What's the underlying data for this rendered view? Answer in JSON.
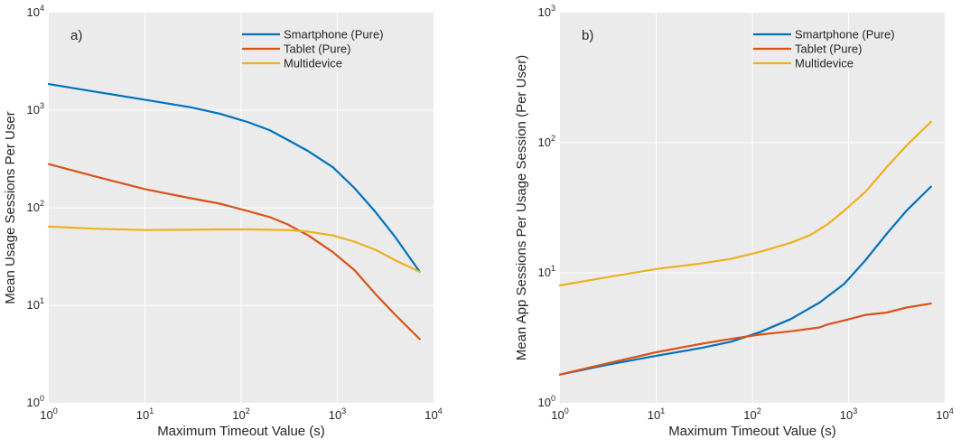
{
  "colors": {
    "smartphone": "#0072BD",
    "tablet": "#D95319",
    "multidevice": "#EDB120",
    "plot_bg": "#EBEBEB",
    "grid": "#FFFFFF"
  },
  "chart_data": [
    {
      "type": "line",
      "panel_label": "a)",
      "xlabel": "Maximum Timeout Value (s)",
      "ylabel": "Mean Usage Sessions Per User",
      "x_scale": "log",
      "y_scale": "log",
      "xlim": [
        1,
        10000
      ],
      "ylim": [
        1,
        10000
      ],
      "x_ticks": [
        {
          "base": "10",
          "exp": "0",
          "v": 1
        },
        {
          "base": "10",
          "exp": "1",
          "v": 10
        },
        {
          "base": "10",
          "exp": "2",
          "v": 100
        },
        {
          "base": "10",
          "exp": "3",
          "v": 1000
        },
        {
          "base": "10",
          "exp": "4",
          "v": 10000
        }
      ],
      "y_ticks": [
        {
          "base": "10",
          "exp": "0",
          "v": 1
        },
        {
          "base": "10",
          "exp": "1",
          "v": 10
        },
        {
          "base": "10",
          "exp": "2",
          "v": 100
        },
        {
          "base": "10",
          "exp": "3",
          "v": 1000
        },
        {
          "base": "10",
          "exp": "4",
          "v": 10000
        }
      ],
      "grid": true,
      "legend_position": "top-right",
      "series": [
        {
          "name": "Smartphone (Pure)",
          "color_key": "smartphone",
          "x": [
            1,
            3,
            10,
            30,
            60,
            120,
            200,
            300,
            500,
            900,
            1500,
            2500,
            4000,
            7200
          ],
          "y": [
            1850,
            1550,
            1280,
            1070,
            920,
            750,
            620,
            500,
            380,
            260,
            160,
            90,
            50,
            22
          ]
        },
        {
          "name": "Tablet (Pure)",
          "color_key": "tablet",
          "x": [
            1,
            3,
            10,
            30,
            60,
            120,
            200,
            300,
            500,
            900,
            1500,
            2500,
            4000,
            7200
          ],
          "y": [
            280,
            210,
            155,
            125,
            110,
            92,
            80,
            68,
            52,
            35,
            23,
            13,
            8,
            4.5
          ]
        },
        {
          "name": "Multidevice",
          "color_key": "multidevice",
          "x": [
            1,
            3,
            10,
            30,
            60,
            120,
            300,
            500,
            900,
            1500,
            2500,
            4000,
            7200
          ],
          "y": [
            64,
            61,
            59,
            59.5,
            60,
            60,
            59,
            57,
            52,
            45,
            37,
            29,
            22
          ]
        }
      ]
    },
    {
      "type": "line",
      "panel_label": "b)",
      "xlabel": "Maximum Timeout Value (s)",
      "ylabel": "Mean App Sessions Per Usage Session (Per User)",
      "x_scale": "log",
      "y_scale": "log",
      "xlim": [
        1,
        10000
      ],
      "ylim": [
        1,
        1000
      ],
      "x_ticks": [
        {
          "base": "10",
          "exp": "0",
          "v": 1
        },
        {
          "base": "10",
          "exp": "1",
          "v": 10
        },
        {
          "base": "10",
          "exp": "2",
          "v": 100
        },
        {
          "base": "10",
          "exp": "3",
          "v": 1000
        },
        {
          "base": "10",
          "exp": "4",
          "v": 10000
        }
      ],
      "y_ticks": [
        {
          "base": "10",
          "exp": "0",
          "v": 1
        },
        {
          "base": "10",
          "exp": "1",
          "v": 10
        },
        {
          "base": "10",
          "exp": "2",
          "v": 100
        },
        {
          "base": "10",
          "exp": "3",
          "v": 1000
        }
      ],
      "grid": true,
      "legend_position": "top-right",
      "series": [
        {
          "name": "Smartphone (Pure)",
          "color_key": "smartphone",
          "x": [
            1,
            3,
            10,
            30,
            60,
            120,
            250,
            500,
            900,
            1500,
            2500,
            4000,
            7200
          ],
          "y": [
            1.65,
            1.95,
            2.3,
            2.65,
            2.95,
            3.5,
            4.4,
            5.9,
            8.2,
            12.5,
            20,
            30,
            46
          ]
        },
        {
          "name": "Tablet (Pure)",
          "color_key": "tablet",
          "x": [
            1,
            3,
            10,
            30,
            60,
            120,
            250,
            500,
            600,
            900,
            1500,
            2500,
            4000,
            7200
          ],
          "y": [
            1.65,
            2.0,
            2.45,
            2.85,
            3.1,
            3.35,
            3.55,
            3.8,
            4.0,
            4.3,
            4.75,
            4.95,
            5.4,
            5.8
          ]
        },
        {
          "name": "Multidevice",
          "color_key": "multidevice",
          "x": [
            1,
            3,
            10,
            30,
            60,
            120,
            250,
            400,
            600,
            900,
            1500,
            2500,
            4000,
            7200
          ],
          "y": [
            8,
            9.2,
            10.7,
            11.8,
            12.8,
            14.5,
            17,
            19.5,
            23.5,
            30,
            42,
            65,
            95,
            145
          ]
        }
      ]
    }
  ]
}
